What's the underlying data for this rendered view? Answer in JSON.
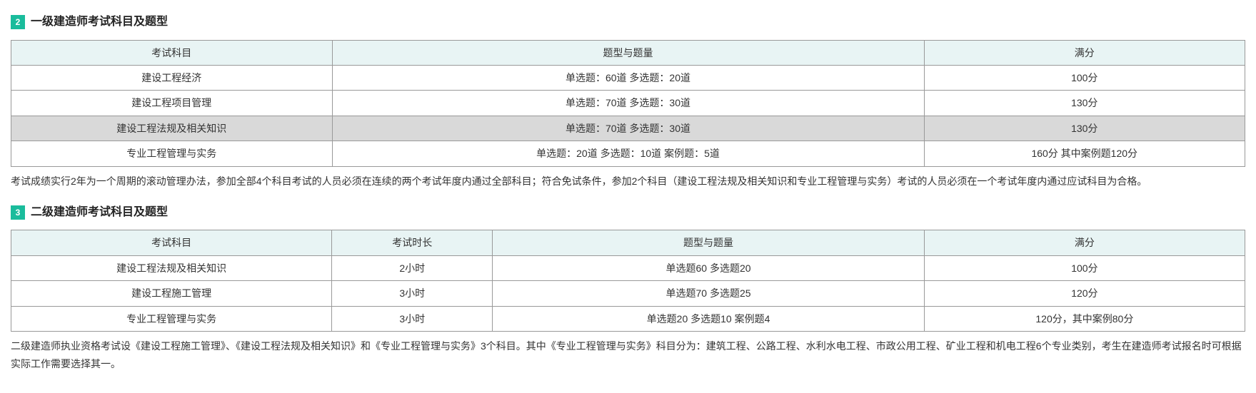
{
  "section1": {
    "badge": "2",
    "title": "一级建造师考试科目及题型",
    "columns": [
      "考试科目",
      "题型与题量",
      "满分"
    ],
    "col_widths": [
      "26%",
      "48%",
      "26%"
    ],
    "rows": [
      {
        "cells": [
          "建设工程经济",
          "单选题：60道  多选题：20道",
          "100分"
        ],
        "highlight": false
      },
      {
        "cells": [
          "建设工程项目管理",
          "单选题：70道  多选题：30道",
          "130分"
        ],
        "highlight": false
      },
      {
        "cells": [
          "建设工程法规及相关知识",
          "单选题：70道  多选题：30道",
          "130分"
        ],
        "highlight": true
      },
      {
        "cells": [
          "专业工程管理与实务",
          "单选题：20道  多选题：10道 案例题：5道",
          "160分 其中案例题120分"
        ],
        "highlight": false
      }
    ],
    "note": "考试成绩实行2年为一个周期的滚动管理办法，参加全部4个科目考试的人员必须在连续的两个考试年度内通过全部科目；符合免试条件，参加2个科目（建设工程法规及相关知识和专业工程管理与实务）考试的人员必须在一个考试年度内通过应试科目为合格。"
  },
  "section2": {
    "badge": "3",
    "title": "二级建造师考试科目及题型",
    "columns": [
      "考试科目",
      "考试时长",
      "题型与题量",
      "满分"
    ],
    "col_widths": [
      "26%",
      "13%",
      "35%",
      "26%"
    ],
    "rows": [
      {
        "cells": [
          "建设工程法规及相关知识",
          "2小时",
          "单选题60  多选题20",
          "100分"
        ],
        "highlight": false
      },
      {
        "cells": [
          "建设工程施工管理",
          "3小时",
          "单选题70  多选题25",
          "120分"
        ],
        "highlight": false
      },
      {
        "cells": [
          "专业工程管理与实务",
          "3小时",
          "单选题20  多选题10 案例题4",
          "120分，其中案例80分"
        ],
        "highlight": false
      }
    ],
    "note": "二级建造师执业资格考试设《建设工程施工管理》、《建设工程法规及相关知识》和《专业工程管理与实务》3个科目。其中《专业工程管理与实务》科目分为：建筑工程、公路工程、水利水电工程、市政公用工程、矿业工程和机电工程6个专业类别，考生在建造师考试报名时可根据实际工作需要选择其一。"
  },
  "colors": {
    "badge_bg": "#1abc9c",
    "header_bg": "#e8f4f4",
    "highlight_bg": "#d9d9d9",
    "border": "#999999",
    "text": "#333333"
  }
}
